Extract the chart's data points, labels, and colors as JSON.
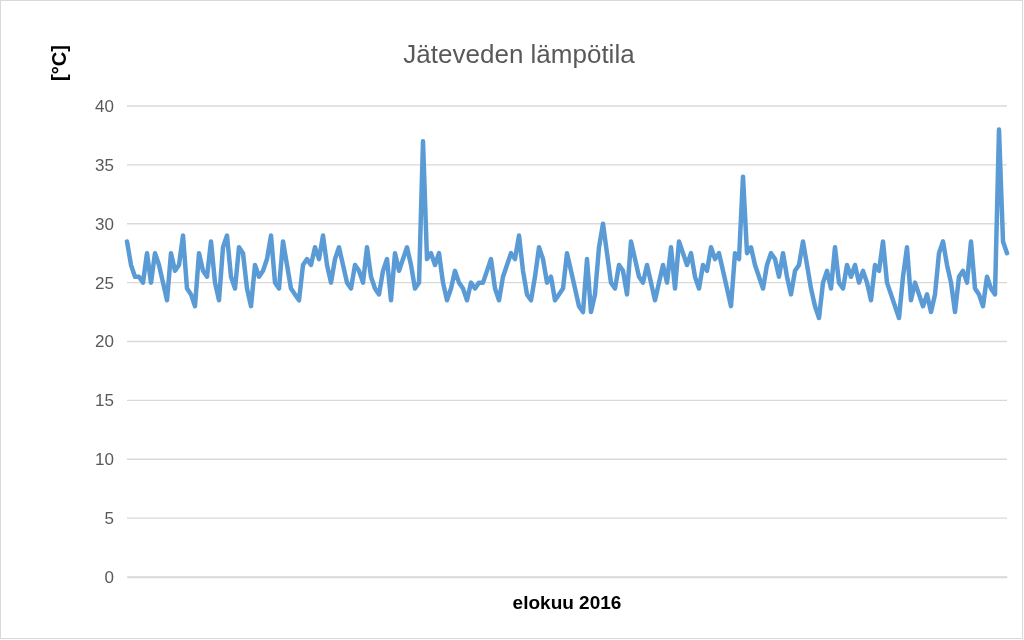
{
  "chart_data": {
    "type": "line",
    "title": "Jäteveden lämpötila",
    "xlabel": "elokuu 2016",
    "ylabel": "[°C]",
    "ylim": [
      0,
      40
    ],
    "yticks": [
      0,
      5,
      10,
      15,
      20,
      25,
      30,
      35,
      40
    ],
    "grid": "y",
    "tick_labels": "y",
    "marker": "none",
    "line_style": "solid",
    "series": [
      {
        "color": "#5b9bd5",
        "values": [
          28.5,
          26.5,
          25.5,
          25.5,
          25,
          27.5,
          25,
          27.5,
          26.5,
          25,
          23.5,
          27.5,
          26,
          26.5,
          29,
          24.5,
          24,
          23,
          27.5,
          26,
          25.5,
          28.5,
          25,
          23.5,
          28,
          29,
          25.5,
          24.5,
          28,
          27.5,
          24.5,
          23,
          26.5,
          25.5,
          26,
          27,
          29,
          25,
          24.5,
          28.5,
          26.5,
          24.5,
          24,
          23.5,
          26.5,
          27,
          26.5,
          28,
          27,
          29,
          26.5,
          25,
          27,
          28,
          26.5,
          25,
          24.5,
          26.5,
          26,
          25,
          28,
          25.5,
          24.5,
          24,
          26,
          27,
          23.5,
          27.5,
          26,
          27,
          28,
          26.5,
          24.5,
          25,
          37,
          27,
          27.5,
          26.5,
          27.5,
          25,
          23.5,
          24.5,
          26,
          25,
          24.5,
          23.5,
          25,
          24.5,
          25,
          25,
          26,
          27,
          24.5,
          23.5,
          25.5,
          26.5,
          27.5,
          27,
          29,
          26,
          24,
          23.5,
          25.5,
          28,
          27,
          25,
          25.5,
          23.5,
          24,
          24.5,
          27.5,
          26,
          24.5,
          23,
          22.5,
          27,
          22.5,
          24,
          28,
          30,
          27.5,
          25,
          24.5,
          26.5,
          26,
          24,
          28.5,
          27,
          25.5,
          25,
          26.5,
          25,
          23.5,
          25,
          26.5,
          25,
          28,
          24.5,
          28.5,
          27.5,
          26.5,
          27.5,
          25.5,
          24.5,
          26.5,
          26,
          28,
          27,
          27.5,
          26,
          24.5,
          23,
          27.5,
          27,
          34,
          27.5,
          28,
          26.5,
          25.5,
          24.5,
          26.5,
          27.5,
          27,
          25.5,
          27.5,
          25.5,
          24,
          26,
          26.5,
          28.5,
          26.5,
          24.5,
          23,
          22,
          25,
          26,
          24.5,
          28,
          25,
          24.5,
          26.5,
          25.5,
          26.5,
          25,
          26,
          25,
          23.5,
          26.5,
          26,
          28.5,
          25,
          24,
          23,
          22,
          25.5,
          28,
          23.5,
          25,
          24,
          23,
          24,
          22.5,
          24,
          27.5,
          28.5,
          26.5,
          25,
          22.5,
          25.5,
          26,
          25,
          28.5,
          24.5,
          24,
          23,
          25.5,
          24.5,
          24,
          38,
          28.5,
          27.5
        ]
      }
    ]
  }
}
